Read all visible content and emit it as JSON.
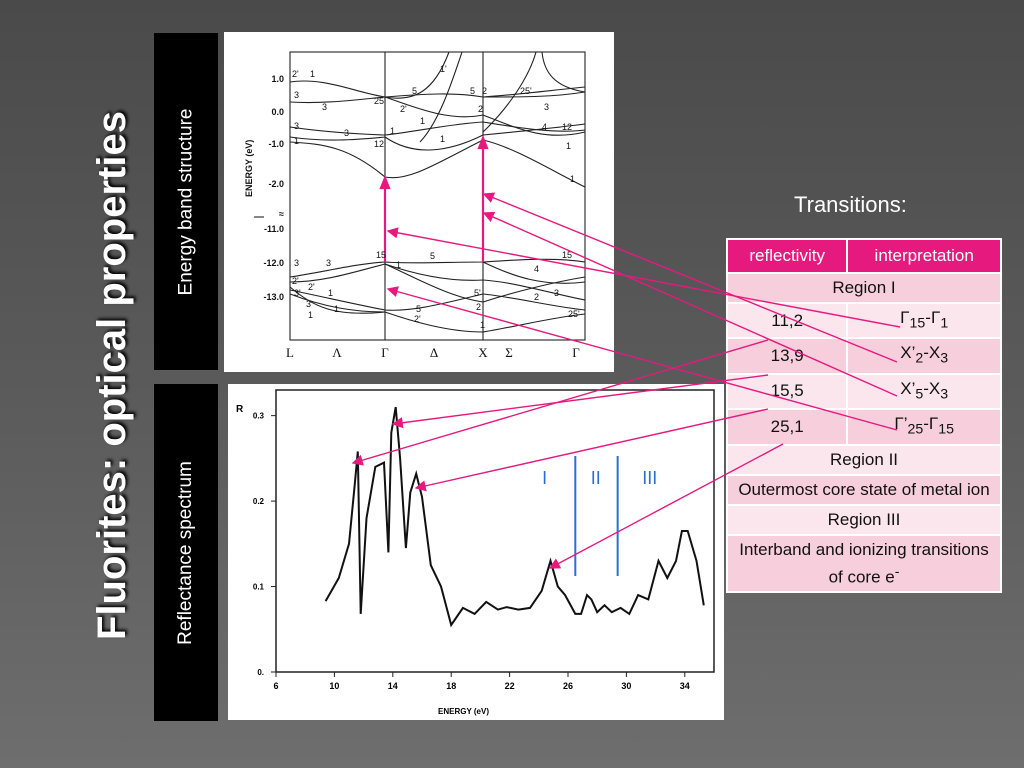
{
  "title": "Fluorites: optical properties",
  "band_label": "Energy band structure",
  "spectrum_label": "Reflectance spectrum",
  "transitions_heading": "Transitions:",
  "table": {
    "headers": [
      "reflectivity",
      "interpretation"
    ],
    "region1": "Region I",
    "rows": [
      {
        "value": "11,2",
        "main": [
          "Γ",
          "-Γ"
        ],
        "subs": [
          "15",
          "1"
        ]
      },
      {
        "value": "13,9",
        "main": [
          "X’",
          "-X"
        ],
        "subs": [
          "2",
          "3"
        ]
      },
      {
        "value": "15,5",
        "main": [
          "X’",
          "-X"
        ],
        "subs": [
          "5",
          "3"
        ]
      },
      {
        "value": "25,1",
        "main": [
          "Γ’",
          "-Γ"
        ],
        "subs": [
          "25",
          "15"
        ]
      }
    ],
    "region2": "Region II",
    "region2_desc": "Outermost core state of metal ion",
    "region3": "Region III",
    "region3_desc": "Interband and ionizing transitions of core e",
    "region3_sup": "-"
  },
  "band_figure": {
    "y_axis_label": "ENERGY (eV)",
    "y_ticks": [
      "1.0",
      "0.0",
      "-1.0",
      "-2.0",
      "≈",
      "-11.0",
      "-12.0",
      "-13.0"
    ],
    "k_labels": [
      "L",
      "Λ",
      "Γ",
      "Δ",
      "X",
      "Σ",
      "Γ"
    ],
    "band_labels": [
      "2'",
      "1",
      "3",
      "3",
      "25'",
      "2'",
      "5",
      "1",
      "3",
      "12",
      "1",
      "3",
      "1",
      "1'",
      "1",
      "2",
      "25'",
      "5",
      "2",
      "3",
      "4",
      "12",
      "1",
      "1",
      "3",
      "2'",
      "15",
      "1",
      "5",
      "3",
      "15",
      "4",
      "5'",
      "2",
      "3",
      "2'",
      "5",
      "1",
      "2",
      "25'",
      "1",
      "3'",
      "2'",
      "3",
      "1",
      "1"
    ]
  },
  "chart_data": {
    "type": "line",
    "title": "",
    "xlabel": "ENERGY (eV)",
    "ylabel": "R",
    "xlim": [
      6,
      36
    ],
    "ylim": [
      0,
      0.33
    ],
    "x_ticks": [
      6,
      10,
      14,
      18,
      22,
      26,
      30,
      34
    ],
    "y_ticks": [
      "0.",
      "0.1",
      "0.2",
      "0.3"
    ],
    "x": [
      9.4,
      10.3,
      11.0,
      11.4,
      11.6,
      11.8,
      12.2,
      12.8,
      13.4,
      13.7,
      13.9,
      14.2,
      14.5,
      14.9,
      15.2,
      15.6,
      16.0,
      16.6,
      17.3,
      18.0,
      18.8,
      19.6,
      20.4,
      21.2,
      21.8,
      22.6,
      23.4,
      24.2,
      24.8,
      25.3,
      25.8,
      26.5,
      26.9,
      27.3,
      27.6,
      28.0,
      28.5,
      29.0,
      29.6,
      30.2,
      30.8,
      31.5,
      32.2,
      32.8,
      33.4,
      33.8,
      34.2,
      34.8,
      35.3
    ],
    "values": [
      0.083,
      0.11,
      0.15,
      0.22,
      0.258,
      0.068,
      0.18,
      0.24,
      0.245,
      0.14,
      0.28,
      0.31,
      0.25,
      0.145,
      0.21,
      0.232,
      0.205,
      0.125,
      0.1,
      0.055,
      0.075,
      0.068,
      0.082,
      0.073,
      0.076,
      0.073,
      0.075,
      0.095,
      0.13,
      0.1,
      0.09,
      0.068,
      0.068,
      0.09,
      0.085,
      0.07,
      0.078,
      0.07,
      0.075,
      0.068,
      0.09,
      0.085,
      0.13,
      0.11,
      0.13,
      0.165,
      0.165,
      0.13,
      0.078
    ],
    "annotations": [
      "I",
      "II",
      "III"
    ],
    "region_bounds_ev": [
      26.5,
      29.4
    ],
    "peaks_ev": [
      11.2,
      13.9,
      15.5,
      25.1
    ]
  },
  "colors": {
    "accent": "#e6197f",
    "region_lines": "#2a6ed6",
    "row_dark": "#f7cfdc",
    "row_light": "#fbe6ee"
  }
}
